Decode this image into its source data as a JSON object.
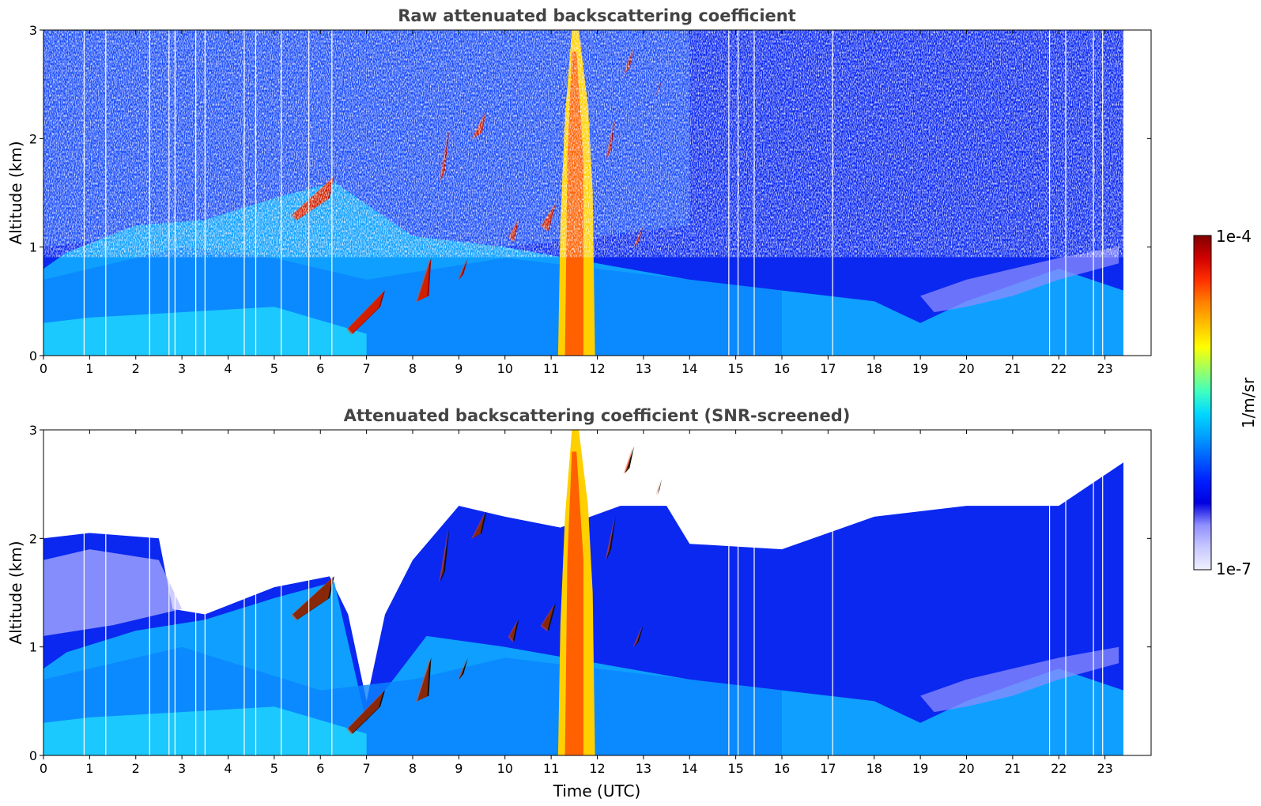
{
  "colors": {
    "background": "#ffffff",
    "title": "#444444",
    "jet": [
      "#f0f0ff",
      "#c8c8ff",
      "#9090ff",
      "#0000e0",
      "#0020ff",
      "#0060ff",
      "#00a0ff",
      "#00d8ff",
      "#40ffc0",
      "#a0ff60",
      "#ffff00",
      "#ffc000",
      "#ff8000",
      "#ff3000",
      "#d00000",
      "#800000"
    ]
  },
  "chart_data": [
    {
      "type": "heatmap",
      "title": "Raw attenuated backscattering coefficient",
      "xlabel": "",
      "ylabel": "Altitude (km)",
      "xlim": [
        0,
        24
      ],
      "ylim": [
        0,
        3
      ],
      "x_ticks": [
        "0",
        "1",
        "2",
        "3",
        "4",
        "5",
        "6",
        "7",
        "8",
        "9",
        "10",
        "11",
        "12",
        "13",
        "14",
        "15",
        "16",
        "17",
        "18",
        "19",
        "20",
        "21",
        "22",
        "23"
      ],
      "y_ticks": [
        "0",
        "1",
        "2",
        "3"
      ],
      "data_end_time": 23.4,
      "colorscale": "jet",
      "scale": "log"
    },
    {
      "type": "heatmap",
      "title": "Attenuated backscattering coefficient (SNR-screened)",
      "xlabel": "Time (UTC)",
      "ylabel": "Altitude (km)",
      "xlim": [
        0,
        24
      ],
      "ylim": [
        0,
        3
      ],
      "x_ticks": [
        "0",
        "1",
        "2",
        "3",
        "4",
        "5",
        "6",
        "7",
        "8",
        "9",
        "10",
        "11",
        "12",
        "13",
        "14",
        "15",
        "16",
        "17",
        "18",
        "19",
        "20",
        "21",
        "22",
        "23"
      ],
      "y_ticks": [
        "0",
        "1",
        "2",
        "3"
      ],
      "data_end_time": 23.4,
      "colorscale": "jet",
      "scale": "log"
    }
  ],
  "colorbar": {
    "label": "1/m/sr",
    "max_label": "1e-4",
    "min_label": "1e-7"
  }
}
